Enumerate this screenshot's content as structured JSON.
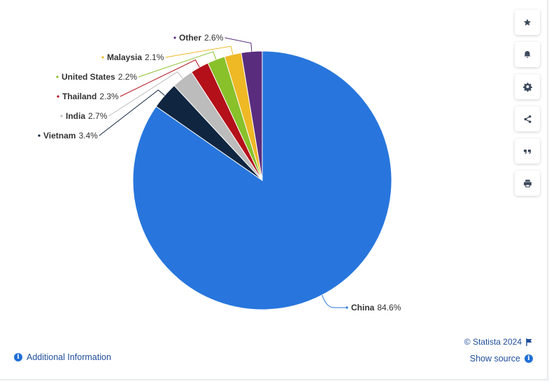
{
  "chart_data": {
    "type": "pie",
    "slices": [
      {
        "label": "China",
        "value": 84.6,
        "display": "84.6%",
        "color": "#2876dd"
      },
      {
        "label": "Vietnam",
        "value": 3.4,
        "display": "3.4%",
        "color": "#0f2540"
      },
      {
        "label": "India",
        "value": 2.7,
        "display": "2.7%",
        "color": "#bcbcbc"
      },
      {
        "label": "Thailand",
        "value": 2.3,
        "display": "2.3%",
        "color": "#b4101a"
      },
      {
        "label": "United States",
        "value": 2.2,
        "display": "2.2%",
        "color": "#88c12a"
      },
      {
        "label": "Malaysia",
        "value": 2.1,
        "display": "2.1%",
        "color": "#efb825"
      },
      {
        "label": "Other",
        "value": 2.6,
        "display": "2.6%",
        "color": "#5a2c7e"
      }
    ],
    "start_angle_deg": 0,
    "direction": "clockwise",
    "legend": "none (direct labels)"
  },
  "toolbar": {
    "icons": [
      "star-icon",
      "bell-icon",
      "gear-icon",
      "share-icon",
      "quote-icon",
      "print-icon"
    ]
  },
  "footer": {
    "credits": "© Statista 2024",
    "show_source": "Show source",
    "additional_info": "Additional Information"
  }
}
